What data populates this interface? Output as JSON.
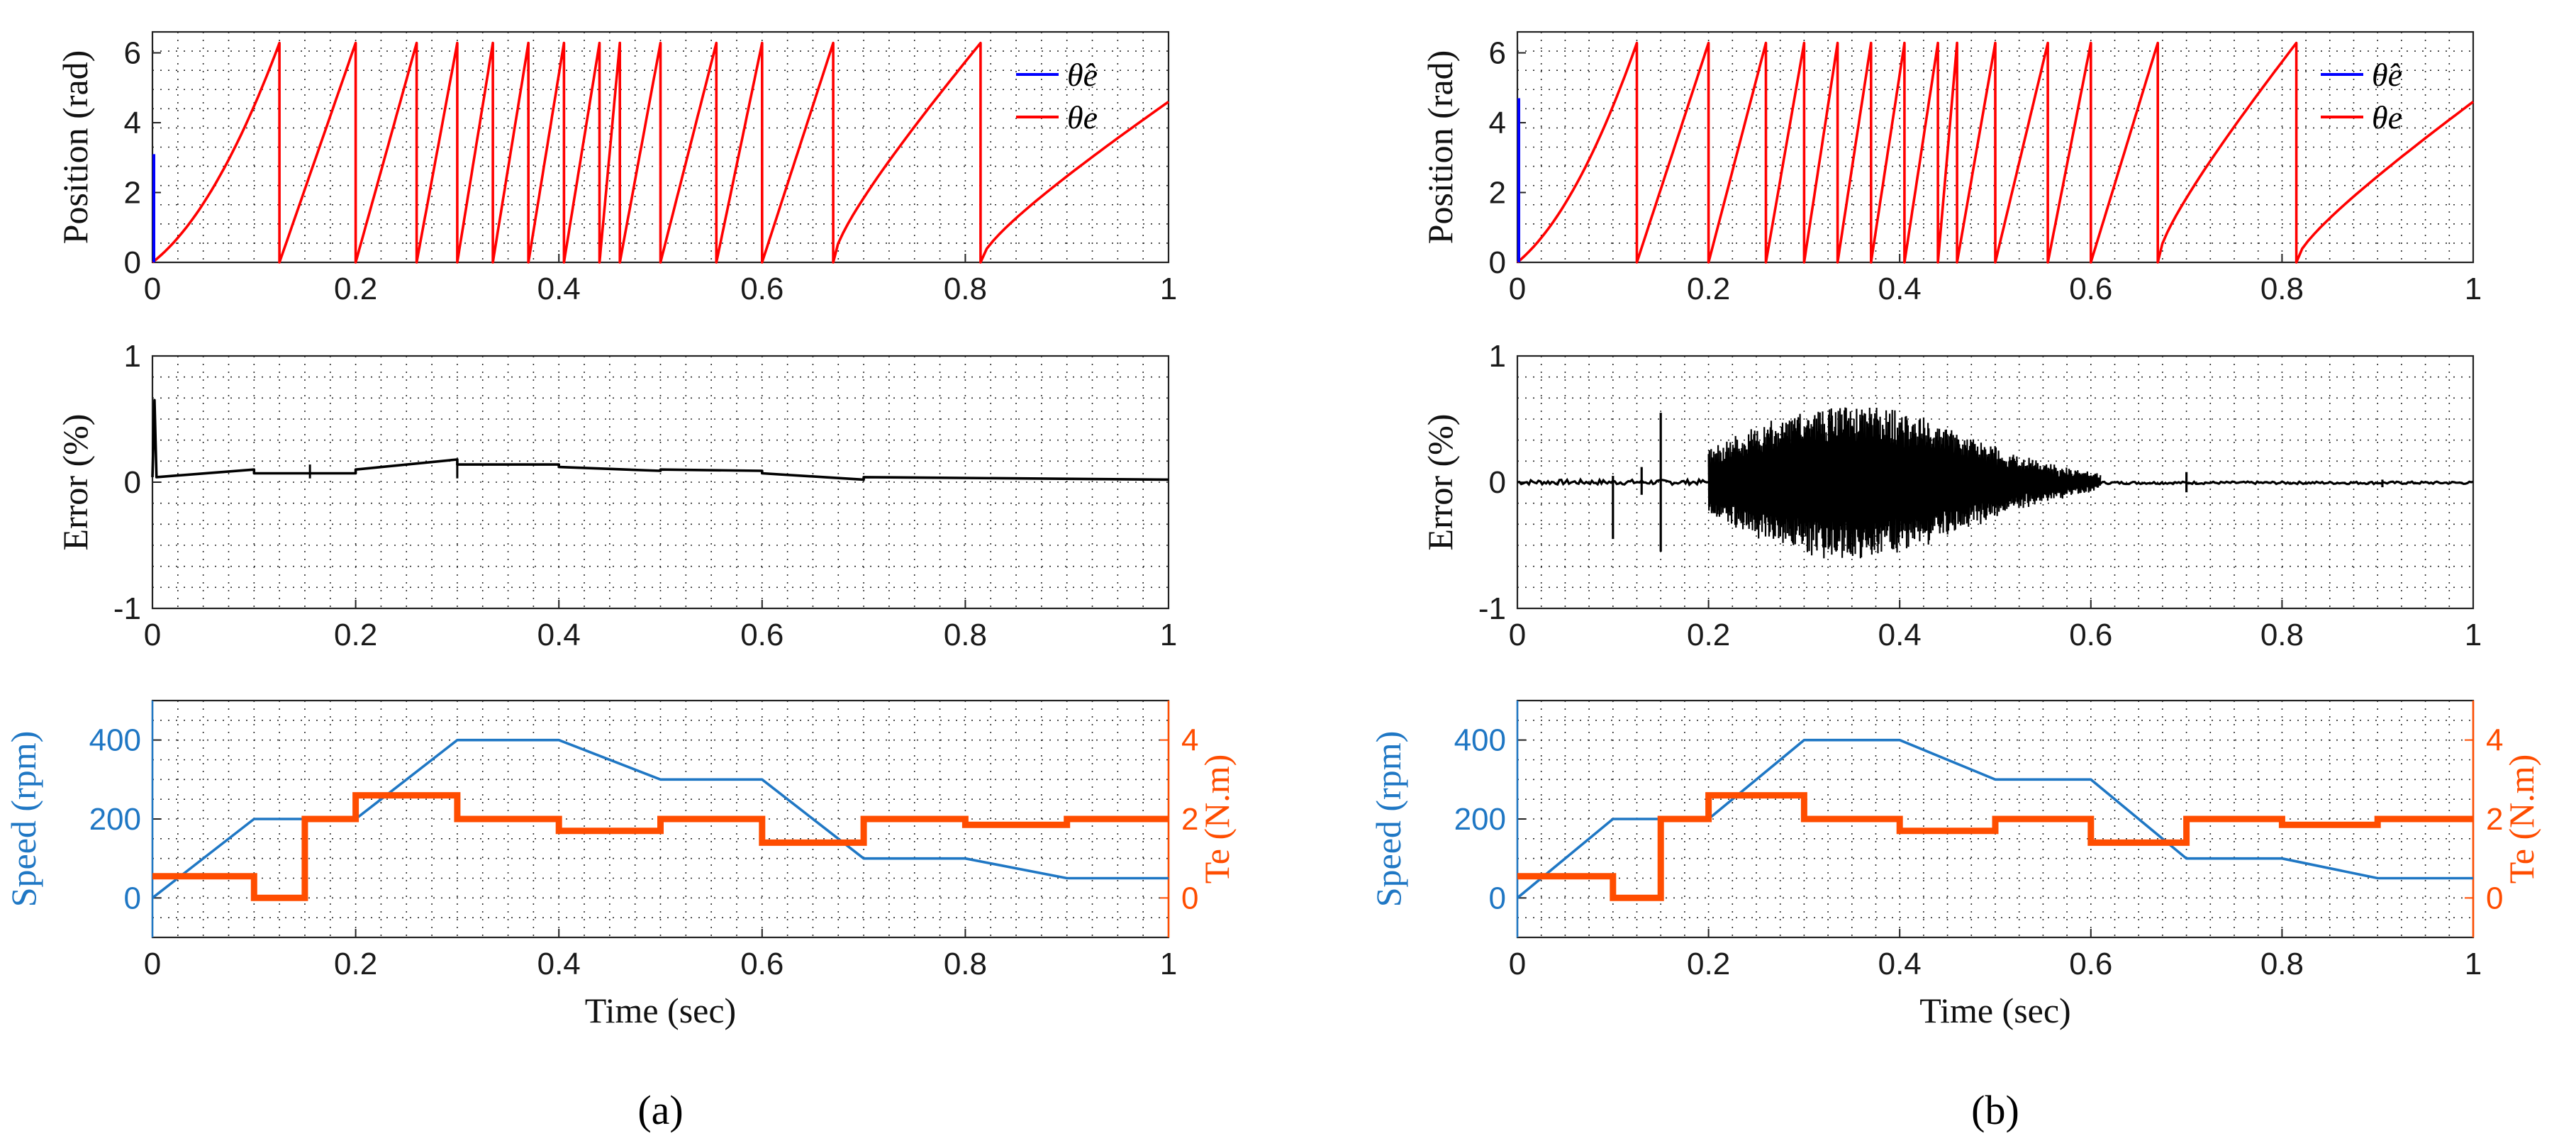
{
  "figure": {
    "panel_labels": [
      "(a)",
      "(b)"
    ],
    "bold_letters": [
      "a",
      "b"
    ]
  },
  "colors": {
    "estimated": "#0000ff",
    "actual": "#ff0000",
    "error": "#000000",
    "speed": "#1f77c4",
    "torque": "#ff4d00"
  },
  "chart_data": [
    {
      "id": "a-position",
      "type": "line",
      "ylabel": "Position (rad)",
      "xlim": [
        0,
        1
      ],
      "ylim": [
        0,
        6.6
      ],
      "yticks": [
        0,
        2,
        4,
        6
      ],
      "xticks": [
        0,
        0.2,
        0.4,
        0.6,
        0.8,
        1
      ],
      "legend": [
        "θ̂e",
        "θe"
      ],
      "legend_position": "top-right",
      "wrap_times": [
        0,
        0.125,
        0.2,
        0.26,
        0.3,
        0.335,
        0.37,
        0.405,
        0.44,
        0.46,
        0.5,
        0.555,
        0.6,
        0.67,
        0.815
      ],
      "end_value": 4.6,
      "estimator_initial_spike": 3.1
    },
    {
      "id": "a-error",
      "type": "line",
      "ylabel": "Error (%)",
      "xlim": [
        0,
        1
      ],
      "ylim": [
        -1,
        1
      ],
      "yticks": [
        -1,
        0,
        1
      ],
      "xticks": [
        0,
        0.2,
        0.4,
        0.6,
        0.8,
        1
      ],
      "x": [
        0,
        0.002,
        0.004,
        0.1,
        0.1,
        0.15,
        0.2,
        0.2,
        0.3,
        0.3,
        0.4,
        0.4,
        0.5,
        0.5,
        0.6,
        0.6,
        0.7,
        0.7,
        1.0
      ],
      "y": [
        0.04,
        0.65,
        0.04,
        0.1,
        0.07,
        0.07,
        0.07,
        0.1,
        0.18,
        0.14,
        0.14,
        0.12,
        0.09,
        0.1,
        0.09,
        0.07,
        0.02,
        0.04,
        0.02
      ]
    },
    {
      "id": "a-speed-torque",
      "type": "line",
      "ylabel": "Speed (rpm)",
      "ylabel_right": "Te (N.m)",
      "xlabel": "Time (sec)",
      "xlim": [
        0,
        1
      ],
      "ylim": [
        -100,
        500
      ],
      "ylim_right": [
        -1,
        5
      ],
      "yticks": [
        0,
        200,
        400
      ],
      "yticks_right": [
        0,
        2,
        4
      ],
      "xticks": [
        0,
        0.2,
        0.4,
        0.6,
        0.8,
        1
      ],
      "series": [
        {
          "name": "Speed",
          "axis": "left",
          "x": [
            0,
            0.1,
            0.15,
            0.2,
            0.3,
            0.4,
            0.5,
            0.6,
            0.7,
            0.8,
            0.9,
            1.0
          ],
          "values": [
            0,
            200,
            200,
            200,
            400,
            400,
            300,
            300,
            100,
            100,
            50,
            50
          ]
        },
        {
          "name": "Te",
          "axis": "right",
          "x": [
            0,
            0.1,
            0.1,
            0.15,
            0.15,
            0.2,
            0.2,
            0.3,
            0.3,
            0.4,
            0.4,
            0.5,
            0.5,
            0.6,
            0.6,
            0.7,
            0.7,
            0.8,
            0.8,
            0.9,
            0.9,
            1.0
          ],
          "values": [
            0.55,
            0.55,
            0,
            0,
            2,
            2,
            2.6,
            2.6,
            2,
            2,
            1.7,
            1.7,
            2,
            2,
            1.4,
            1.4,
            2,
            2,
            1.85,
            1.85,
            2,
            2
          ]
        }
      ]
    },
    {
      "id": "b-position",
      "type": "line",
      "ylabel": "Position (rad)",
      "xlim": [
        0,
        1
      ],
      "ylim": [
        0,
        6.6
      ],
      "yticks": [
        0,
        2,
        4,
        6
      ],
      "xticks": [
        0,
        0.2,
        0.4,
        0.6,
        0.8,
        1
      ],
      "legend": [
        "θ̂e",
        "θe"
      ],
      "legend_position": "top-right",
      "wrap_times": [
        0,
        0.125,
        0.2,
        0.26,
        0.3,
        0.335,
        0.37,
        0.405,
        0.44,
        0.46,
        0.5,
        0.555,
        0.6,
        0.67,
        0.815
      ],
      "end_value": 4.6,
      "estimator_initial_spike": 4.7
    },
    {
      "id": "b-error",
      "type": "line",
      "ylabel": "Error (%)",
      "xlim": [
        0,
        1
      ],
      "ylim": [
        -1,
        1
      ],
      "yticks": [
        -1,
        0,
        1
      ],
      "xticks": [
        0,
        0.2,
        0.4,
        0.6,
        0.8,
        1
      ],
      "baseline": [
        0,
        0.2
      ],
      "spikes": [
        {
          "x": 0.1,
          "min": -0.45,
          "max": 0.05
        },
        {
          "x": 0.13,
          "min": -0.1,
          "max": 0.12
        },
        {
          "x": 0.15,
          "min": -0.55,
          "max": 0.55
        },
        {
          "x": 0.7,
          "min": -0.08,
          "max": 0.08
        },
        {
          "x": 0.905,
          "min": -0.04,
          "max": 0.02
        }
      ],
      "oscillation": {
        "start": 0.2,
        "end": 0.61,
        "peak_amplitude": 0.6,
        "peak_at": 0.35
      }
    },
    {
      "id": "b-speed-torque",
      "type": "line",
      "ylabel": "Speed (rpm)",
      "ylabel_right": "Te (N.m)",
      "xlabel": "Time (sec)",
      "xlim": [
        0,
        1
      ],
      "ylim": [
        -100,
        500
      ],
      "ylim_right": [
        -1,
        5
      ],
      "yticks": [
        0,
        200,
        400
      ],
      "yticks_right": [
        0,
        2,
        4
      ],
      "xticks": [
        0,
        0.2,
        0.4,
        0.6,
        0.8,
        1
      ],
      "series": [
        {
          "name": "Speed",
          "axis": "left",
          "x": [
            0,
            0.1,
            0.15,
            0.2,
            0.3,
            0.4,
            0.5,
            0.6,
            0.7,
            0.8,
            0.9,
            1.0
          ],
          "values": [
            0,
            200,
            200,
            200,
            400,
            400,
            300,
            300,
            100,
            100,
            50,
            50
          ]
        },
        {
          "name": "Te",
          "axis": "right",
          "x": [
            0,
            0.1,
            0.1,
            0.15,
            0.15,
            0.2,
            0.2,
            0.3,
            0.3,
            0.4,
            0.4,
            0.5,
            0.5,
            0.6,
            0.6,
            0.7,
            0.7,
            0.8,
            0.8,
            0.9,
            0.9,
            1.0
          ],
          "values": [
            0.55,
            0.55,
            0,
            0,
            2,
            2,
            2.6,
            2.6,
            2,
            2,
            1.7,
            1.7,
            2,
            2,
            1.4,
            1.4,
            2,
            2,
            1.85,
            1.85,
            2,
            2
          ]
        }
      ]
    }
  ]
}
